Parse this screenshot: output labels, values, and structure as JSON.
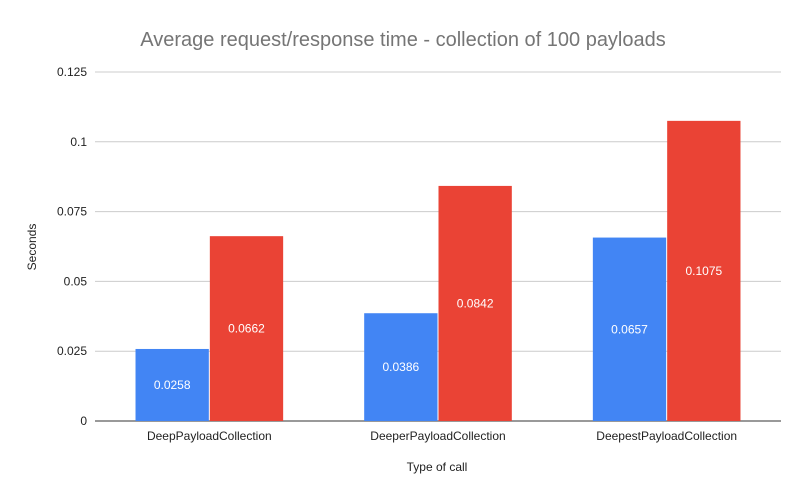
{
  "chart_data": {
    "type": "bar",
    "title": "Average request/response time - collection of 100 payloads",
    "xlabel": "Type of call",
    "ylabel": "Seconds",
    "categories": [
      "DeepPayloadCollection",
      "DeeperPayloadCollection",
      "DeepestPayloadCollection"
    ],
    "series": [
      {
        "values": [
          0.0258,
          0.0386,
          0.0657
        ],
        "value_labels": [
          "0.0258",
          "0.0386",
          "0.0657"
        ],
        "color": "#4285f4"
      },
      {
        "values": [
          0.0662,
          0.0842,
          0.1075
        ],
        "value_labels": [
          "0.0662",
          "0.0842",
          "0.1075"
        ],
        "color": "#ea4335"
      }
    ],
    "ylim": [
      0,
      0.125
    ],
    "yticks": [
      0,
      0.025,
      0.05,
      0.075,
      0.1,
      0.125
    ],
    "ytick_labels": [
      "0",
      "0.025",
      "0.05",
      "0.075",
      "0.1",
      "0.125"
    ],
    "grid": true,
    "legend": "none"
  }
}
